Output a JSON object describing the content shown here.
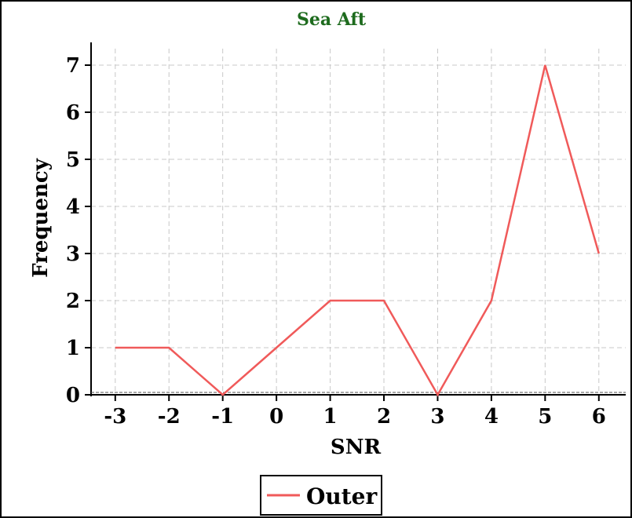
{
  "chart_data": {
    "type": "line",
    "title": "Sea Aft",
    "title_color": "#1e6b1e",
    "xlabel": "SNR",
    "ylabel": "Frequency",
    "x": [
      -3,
      -2,
      -1,
      0,
      1,
      2,
      3,
      4,
      5,
      6
    ],
    "x_tick_labels": [
      "-3",
      "-2",
      "-1",
      "0",
      "1",
      "2",
      "3",
      "4",
      "5",
      "6"
    ],
    "y_tick_labels": [
      "0",
      "1",
      "2",
      "3",
      "4",
      "5",
      "6",
      "7"
    ],
    "xlim": [
      -3.45,
      6.5
    ],
    "ylim": [
      0,
      7.35
    ],
    "grid": true,
    "legend_placement": "bottom-center",
    "series": [
      {
        "name": "Outer",
        "color": "#f05a5a",
        "values": [
          1,
          1,
          0,
          1,
          2,
          2,
          0,
          2,
          7,
          3
        ]
      }
    ]
  }
}
